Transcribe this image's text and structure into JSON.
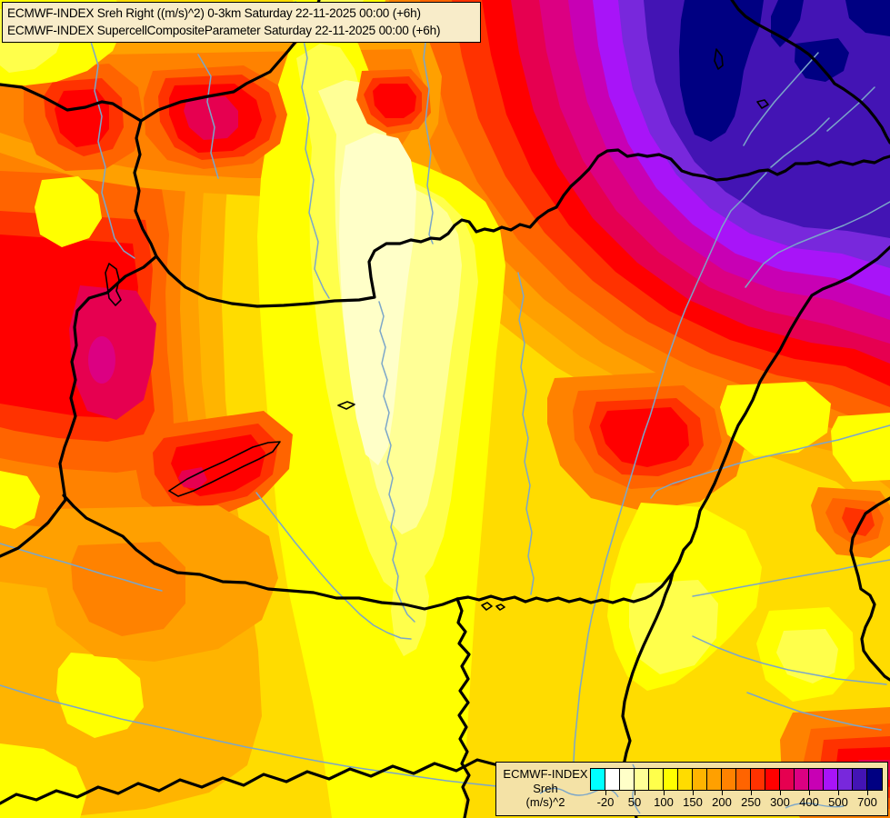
{
  "header": {
    "line1": "ECMWF-INDEX Sreh Right ((m/s)^2) 0-3km Saturday 22-11-2025 00:00 (+6h)",
    "line2": "ECMWF-INDEX SupercellCompositeParameter Saturday 22-11-2025 00:00 (+6h)"
  },
  "legend": {
    "product": "ECMWF-INDEX",
    "parameter": "Sreh",
    "units": "(m/s)^2",
    "tick_labels": [
      "-20",
      "50",
      "100",
      "150",
      "200",
      "250",
      "300",
      "400",
      "500",
      "700"
    ],
    "tick_boundary_indices": [
      1,
      3,
      5,
      7,
      9,
      11,
      13,
      15,
      17,
      19
    ],
    "swatch_colors": [
      "#00FFFF",
      "#FFFFFF",
      "#FFFFC8",
      "#FFFF96",
      "#FFFF4B",
      "#FFFF00",
      "#FFDC00",
      "#FFB400",
      "#FFA000",
      "#FF8200",
      "#FF6400",
      "#FF3200",
      "#FF0000",
      "#E60050",
      "#DC0082",
      "#C800B4",
      "#A814F8",
      "#7828DC",
      "#4314B4",
      "#000082"
    ]
  },
  "map": {
    "border_color": "#000000",
    "river_color": "#7BA6C9",
    "title_box_background": "#F8ECC9",
    "legend_background": "#F4E2A6"
  }
}
